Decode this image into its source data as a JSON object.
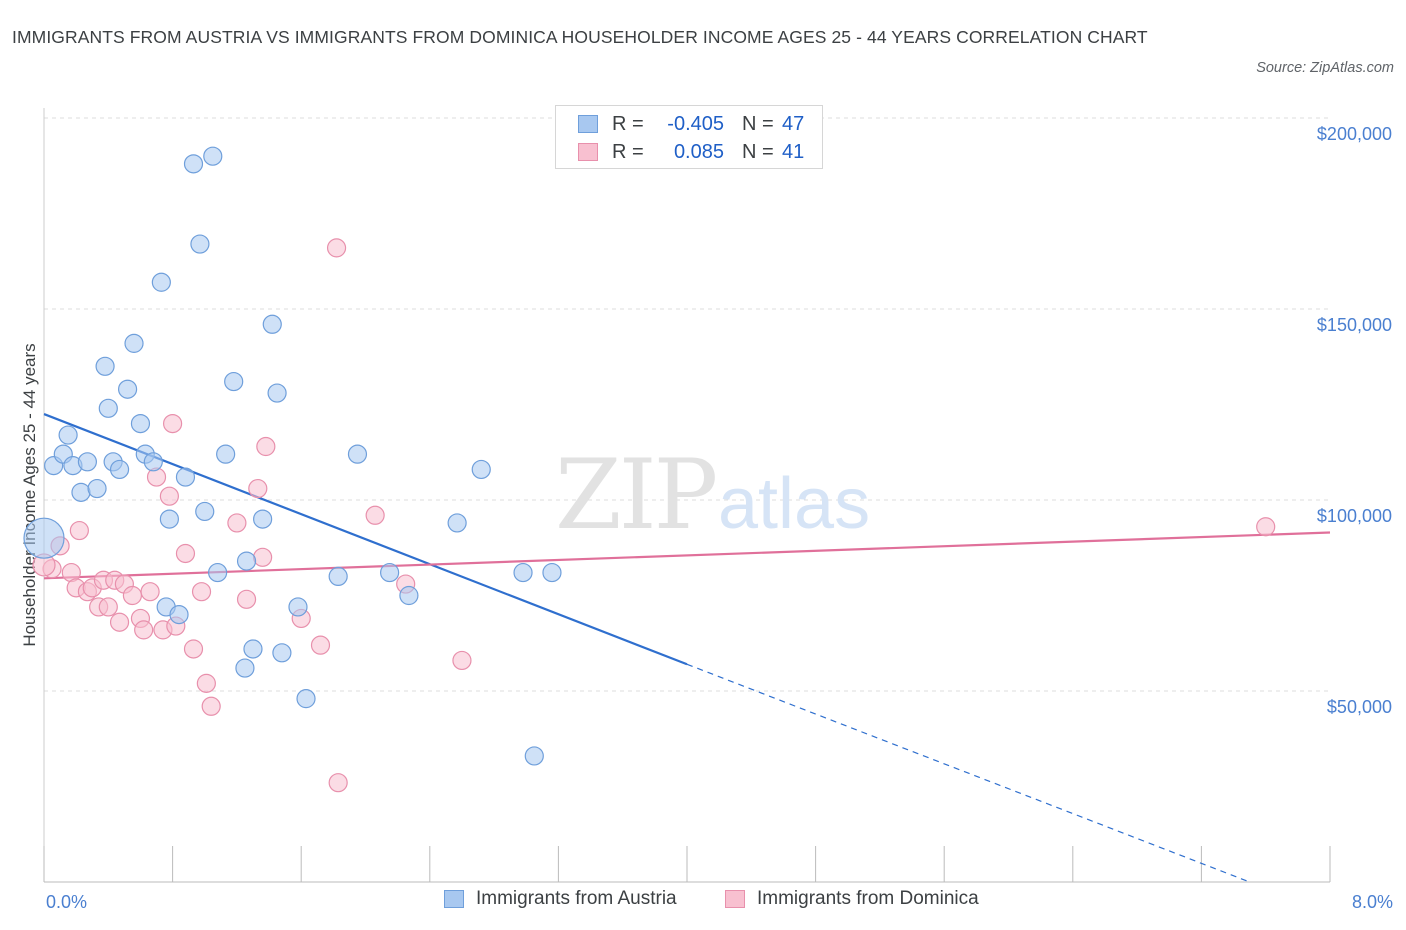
{
  "title": "IMMIGRANTS FROM AUSTRIA VS IMMIGRANTS FROM DOMINICA HOUSEHOLDER INCOME AGES 25 - 44 YEARS CORRELATION CHART",
  "source": "Source: ZipAtlas.com",
  "watermark": {
    "zip": "ZIP",
    "atlas": "atlas"
  },
  "legend": {
    "rows": [
      {
        "r_label": "R =",
        "r_value": "-0.405",
        "n_label": "N =",
        "n_value": "47",
        "color": "#a8c8f0",
        "border": "#6f9fdb"
      },
      {
        "r_label": "R =",
        "r_value": "0.085",
        "n_label": "N =",
        "n_value": "41",
        "color": "#f8c0d0",
        "border": "#e890ac"
      }
    ]
  },
  "bottom_legend": {
    "austria": "Immigrants from Austria",
    "dominica": "Immigrants from Dominica"
  },
  "colors": {
    "austria_fill": "#a8c8f0",
    "austria_stroke": "#6f9fdb",
    "austria_line": "#2f6fce",
    "dominica_fill": "#f8c0d0",
    "dominica_stroke": "#e890ac",
    "dominica_line": "#e0709a",
    "tick_text": "#4a7fd0",
    "grid": "#dddddd"
  },
  "chart_data": {
    "type": "scatter",
    "title": "IMMIGRANTS FROM AUSTRIA VS IMMIGRANTS FROM DOMINICA HOUSEHOLDER INCOME AGES 25 - 44 YEARS CORRELATION CHART",
    "xlabel": "",
    "ylabel": "Householder Income Ages 25 - 44 years",
    "xlim": [
      0,
      8
    ],
    "ylim": [
      0,
      200000
    ],
    "x_tick_labels": [
      "0.0%",
      "8.0%"
    ],
    "y_ticks": [
      50000,
      100000,
      150000,
      200000
    ],
    "y_tick_labels": [
      "$50,000",
      "$100,000",
      "$150,000",
      "$200,000"
    ],
    "grid": "horizontal dashed",
    "legend_placement": "top-center",
    "series": [
      {
        "name": "Immigrants from Austria",
        "points": [
          [
            0.0,
            90000
          ],
          [
            0.06,
            109000
          ],
          [
            0.12,
            112000
          ],
          [
            0.15,
            117000
          ],
          [
            0.18,
            109000
          ],
          [
            0.23,
            102000
          ],
          [
            0.27,
            110000
          ],
          [
            0.33,
            103000
          ],
          [
            0.38,
            135000
          ],
          [
            0.4,
            124000
          ],
          [
            0.43,
            110000
          ],
          [
            0.47,
            108000
          ],
          [
            0.52,
            129000
          ],
          [
            0.56,
            141000
          ],
          [
            0.6,
            120000
          ],
          [
            0.63,
            112000
          ],
          [
            0.68,
            110000
          ],
          [
            0.73,
            157000
          ],
          [
            0.76,
            72000
          ],
          [
            0.78,
            95000
          ],
          [
            0.84,
            70000
          ],
          [
            0.88,
            106000
          ],
          [
            0.93,
            188000
          ],
          [
            0.97,
            167000
          ],
          [
            1.0,
            97000
          ],
          [
            1.05,
            190000
          ],
          [
            1.08,
            81000
          ],
          [
            1.13,
            112000
          ],
          [
            1.18,
            131000
          ],
          [
            1.26,
            84000
          ],
          [
            1.3,
            61000
          ],
          [
            1.36,
            95000
          ],
          [
            1.42,
            146000
          ],
          [
            1.45,
            128000
          ],
          [
            1.48,
            60000
          ],
          [
            1.58,
            72000
          ],
          [
            1.63,
            48000
          ],
          [
            1.83,
            80000
          ],
          [
            1.95,
            112000
          ],
          [
            2.15,
            81000
          ],
          [
            2.27,
            75000
          ],
          [
            2.57,
            94000
          ],
          [
            2.72,
            108000
          ],
          [
            2.98,
            81000
          ],
          [
            3.05,
            33000
          ],
          [
            3.16,
            81000
          ],
          [
            1.25,
            56000
          ]
        ]
      },
      {
        "name": "Immigrants from Dominica",
        "points": [
          [
            0.05,
            82000
          ],
          [
            0.1,
            88000
          ],
          [
            0.17,
            81000
          ],
          [
            0.2,
            77000
          ],
          [
            0.22,
            92000
          ],
          [
            0.27,
            76000
          ],
          [
            0.3,
            77000
          ],
          [
            0.34,
            72000
          ],
          [
            0.37,
            79000
          ],
          [
            0.4,
            72000
          ],
          [
            0.44,
            79000
          ],
          [
            0.47,
            68000
          ],
          [
            0.5,
            78000
          ],
          [
            0.55,
            75000
          ],
          [
            0.6,
            69000
          ],
          [
            0.62,
            66000
          ],
          [
            0.66,
            76000
          ],
          [
            0.7,
            106000
          ],
          [
            0.74,
            66000
          ],
          [
            0.78,
            101000
          ],
          [
            0.8,
            120000
          ],
          [
            0.82,
            67000
          ],
          [
            0.88,
            86000
          ],
          [
            0.93,
            61000
          ],
          [
            0.98,
            76000
          ],
          [
            1.01,
            52000
          ],
          [
            1.04,
            46000
          ],
          [
            1.2,
            94000
          ],
          [
            1.26,
            74000
          ],
          [
            1.33,
            103000
          ],
          [
            1.36,
            85000
          ],
          [
            1.38,
            114000
          ],
          [
            1.6,
            69000
          ],
          [
            1.72,
            62000
          ],
          [
            1.82,
            166000
          ],
          [
            1.83,
            26000
          ],
          [
            2.06,
            96000
          ],
          [
            2.25,
            78000
          ],
          [
            2.6,
            58000
          ],
          [
            7.6,
            93000
          ],
          [
            0.0,
            83000
          ]
        ]
      }
    ],
    "trend_lines": [
      {
        "series": "Immigrants from Austria",
        "x_start": 0,
        "y_start": 122500,
        "x_solid_end": 4.0,
        "y_solid_end": 57000,
        "x_dashed_end": 7.5,
        "y_dashed_end": 0
      },
      {
        "series": "Immigrants from Dominica",
        "x_start": 0,
        "y_start": 79500,
        "x_end": 8.0,
        "y_end": 91500
      }
    ]
  }
}
